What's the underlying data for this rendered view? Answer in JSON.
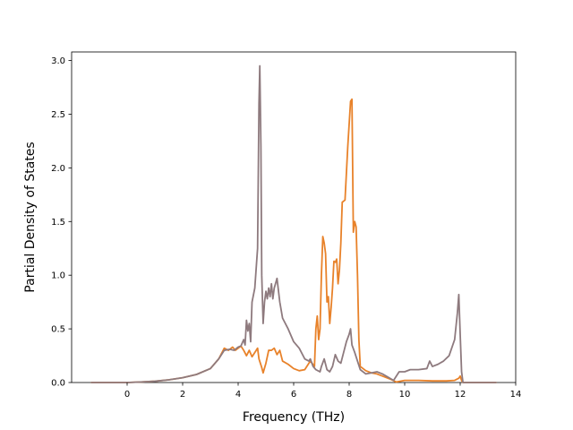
{
  "chart_data": {
    "type": "line",
    "title": "",
    "xlabel": "Frequency (THz)",
    "ylabel": "Partial Density of States",
    "xlim": [
      -2,
      14
    ],
    "ylim": [
      0,
      3.08
    ],
    "xticks": [
      0,
      2,
      4,
      6,
      8,
      10,
      12,
      14
    ],
    "yticks": [
      0.0,
      0.5,
      1.0,
      1.5,
      2.0,
      2.5,
      3.0
    ],
    "xtick_labels": [
      "0",
      "2",
      "4",
      "6",
      "8",
      "10",
      "12",
      "14"
    ],
    "ytick_labels": [
      "0.0",
      "0.5",
      "1.0",
      "1.5",
      "2.0",
      "2.5",
      "3.0"
    ],
    "grid": false,
    "legend": "none",
    "series": [
      {
        "color": "#e8822a",
        "points": [
          [
            -1.3,
            0.0
          ],
          [
            0.0,
            0.0
          ],
          [
            0.5,
            0.005
          ],
          [
            1.0,
            0.012
          ],
          [
            1.5,
            0.025
          ],
          [
            2.0,
            0.045
          ],
          [
            2.5,
            0.075
          ],
          [
            3.0,
            0.13
          ],
          [
            3.3,
            0.22
          ],
          [
            3.5,
            0.32
          ],
          [
            3.65,
            0.3
          ],
          [
            3.8,
            0.33
          ],
          [
            3.9,
            0.3
          ],
          [
            4.0,
            0.32
          ],
          [
            4.1,
            0.34
          ],
          [
            4.2,
            0.3
          ],
          [
            4.3,
            0.25
          ],
          [
            4.4,
            0.3
          ],
          [
            4.5,
            0.24
          ],
          [
            4.6,
            0.28
          ],
          [
            4.7,
            0.32
          ],
          [
            4.75,
            0.22
          ],
          [
            4.8,
            0.18
          ],
          [
            4.85,
            0.14
          ],
          [
            4.9,
            0.09
          ],
          [
            5.0,
            0.18
          ],
          [
            5.1,
            0.3
          ],
          [
            5.2,
            0.3
          ],
          [
            5.3,
            0.32
          ],
          [
            5.4,
            0.26
          ],
          [
            5.5,
            0.3
          ],
          [
            5.6,
            0.2
          ],
          [
            5.8,
            0.17
          ],
          [
            6.0,
            0.13
          ],
          [
            6.2,
            0.11
          ],
          [
            6.4,
            0.12
          ],
          [
            6.6,
            0.2
          ],
          [
            6.75,
            0.15
          ],
          [
            6.8,
            0.5
          ],
          [
            6.85,
            0.62
          ],
          [
            6.9,
            0.4
          ],
          [
            6.95,
            0.5
          ],
          [
            7.0,
            1.0
          ],
          [
            7.05,
            1.36
          ],
          [
            7.1,
            1.3
          ],
          [
            7.15,
            1.2
          ],
          [
            7.2,
            0.75
          ],
          [
            7.25,
            0.8
          ],
          [
            7.3,
            0.55
          ],
          [
            7.35,
            0.7
          ],
          [
            7.4,
            0.88
          ],
          [
            7.45,
            1.13
          ],
          [
            7.5,
            1.12
          ],
          [
            7.55,
            1.15
          ],
          [
            7.6,
            0.92
          ],
          [
            7.65,
            1.05
          ],
          [
            7.7,
            1.3
          ],
          [
            7.75,
            1.68
          ],
          [
            7.85,
            1.7
          ],
          [
            7.95,
            2.2
          ],
          [
            8.05,
            2.62
          ],
          [
            8.1,
            2.64
          ],
          [
            8.15,
            1.4
          ],
          [
            8.2,
            1.5
          ],
          [
            8.25,
            1.45
          ],
          [
            8.3,
            1.0
          ],
          [
            8.35,
            0.4
          ],
          [
            8.4,
            0.15
          ],
          [
            8.6,
            0.11
          ],
          [
            8.8,
            0.09
          ],
          [
            9.0,
            0.08
          ],
          [
            9.2,
            0.06
          ],
          [
            9.5,
            0.03
          ],
          [
            9.7,
            0.005
          ],
          [
            10.0,
            0.02
          ],
          [
            10.5,
            0.02
          ],
          [
            11.0,
            0.015
          ],
          [
            11.5,
            0.015
          ],
          [
            11.8,
            0.02
          ],
          [
            11.95,
            0.04
          ],
          [
            12.0,
            0.06
          ],
          [
            12.05,
            0.02
          ],
          [
            12.1,
            0.0
          ],
          [
            13.3,
            0.0
          ]
        ]
      },
      {
        "color": "#8e7a7e",
        "points": [
          [
            -1.3,
            0.0
          ],
          [
            0.0,
            0.0
          ],
          [
            0.5,
            0.005
          ],
          [
            1.0,
            0.012
          ],
          [
            1.5,
            0.025
          ],
          [
            2.0,
            0.045
          ],
          [
            2.5,
            0.075
          ],
          [
            3.0,
            0.13
          ],
          [
            3.3,
            0.22
          ],
          [
            3.5,
            0.3
          ],
          [
            3.7,
            0.31
          ],
          [
            3.85,
            0.3
          ],
          [
            4.0,
            0.33
          ],
          [
            4.1,
            0.34
          ],
          [
            4.2,
            0.4
          ],
          [
            4.25,
            0.35
          ],
          [
            4.3,
            0.58
          ],
          [
            4.35,
            0.48
          ],
          [
            4.4,
            0.55
          ],
          [
            4.45,
            0.38
          ],
          [
            4.5,
            0.75
          ],
          [
            4.6,
            0.88
          ],
          [
            4.7,
            1.25
          ],
          [
            4.75,
            2.6
          ],
          [
            4.78,
            2.95
          ],
          [
            4.82,
            2.2
          ],
          [
            4.85,
            1.0
          ],
          [
            4.9,
            0.55
          ],
          [
            4.95,
            0.75
          ],
          [
            5.0,
            0.85
          ],
          [
            5.05,
            0.78
          ],
          [
            5.1,
            0.88
          ],
          [
            5.15,
            0.8
          ],
          [
            5.2,
            0.92
          ],
          [
            5.25,
            0.78
          ],
          [
            5.3,
            0.88
          ],
          [
            5.4,
            0.97
          ],
          [
            5.5,
            0.75
          ],
          [
            5.6,
            0.6
          ],
          [
            5.8,
            0.5
          ],
          [
            6.0,
            0.38
          ],
          [
            6.2,
            0.32
          ],
          [
            6.4,
            0.22
          ],
          [
            6.55,
            0.2
          ],
          [
            6.6,
            0.22
          ],
          [
            6.7,
            0.15
          ],
          [
            6.8,
            0.12
          ],
          [
            6.95,
            0.1
          ],
          [
            7.0,
            0.15
          ],
          [
            7.1,
            0.22
          ],
          [
            7.2,
            0.12
          ],
          [
            7.3,
            0.1
          ],
          [
            7.4,
            0.15
          ],
          [
            7.5,
            0.26
          ],
          [
            7.6,
            0.2
          ],
          [
            7.7,
            0.18
          ],
          [
            7.8,
            0.28
          ],
          [
            7.9,
            0.38
          ],
          [
            8.0,
            0.45
          ],
          [
            8.05,
            0.5
          ],
          [
            8.1,
            0.35
          ],
          [
            8.2,
            0.28
          ],
          [
            8.3,
            0.2
          ],
          [
            8.4,
            0.12
          ],
          [
            8.6,
            0.08
          ],
          [
            8.8,
            0.09
          ],
          [
            9.0,
            0.1
          ],
          [
            9.2,
            0.08
          ],
          [
            9.4,
            0.05
          ],
          [
            9.6,
            0.02
          ],
          [
            9.8,
            0.1
          ],
          [
            10.0,
            0.1
          ],
          [
            10.2,
            0.12
          ],
          [
            10.5,
            0.12
          ],
          [
            10.8,
            0.13
          ],
          [
            10.9,
            0.2
          ],
          [
            11.0,
            0.15
          ],
          [
            11.2,
            0.17
          ],
          [
            11.4,
            0.2
          ],
          [
            11.6,
            0.25
          ],
          [
            11.8,
            0.4
          ],
          [
            11.9,
            0.65
          ],
          [
            11.95,
            0.82
          ],
          [
            12.0,
            0.45
          ],
          [
            12.05,
            0.1
          ],
          [
            12.1,
            0.0
          ],
          [
            13.3,
            0.0
          ]
        ]
      }
    ]
  }
}
